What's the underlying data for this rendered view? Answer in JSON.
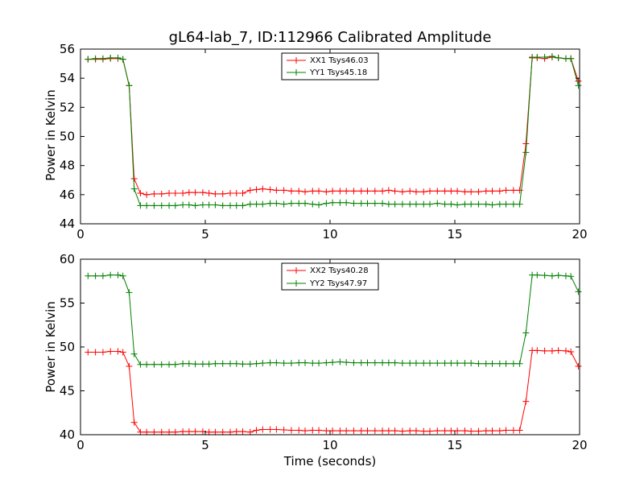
{
  "chart_data": [
    {
      "type": "line",
      "title": "gL64-lab_7, ID:112966 Calibrated Amplitude",
      "xlabel": "",
      "ylabel": "Power in Kelvin",
      "xlim": [
        0,
        20
      ],
      "ylim": [
        44,
        56
      ],
      "xticks": [
        0,
        5,
        10,
        15,
        20
      ],
      "yticks": [
        44,
        46,
        48,
        50,
        52,
        54,
        56
      ],
      "grid": false,
      "legend_position": "top-center",
      "marker": "plus",
      "x": [
        0.3,
        0.6,
        0.9,
        1.2,
        1.5,
        1.7,
        1.95,
        2.15,
        2.4,
        2.65,
        2.95,
        3.25,
        3.55,
        3.8,
        4.1,
        4.35,
        4.6,
        4.9,
        5.15,
        5.4,
        5.7,
        6.0,
        6.25,
        6.5,
        6.8,
        7.05,
        7.3,
        7.6,
        7.85,
        8.15,
        8.45,
        8.75,
        9.0,
        9.3,
        9.55,
        9.85,
        10.1,
        10.4,
        10.65,
        10.95,
        11.25,
        11.5,
        11.8,
        12.1,
        12.35,
        12.6,
        12.9,
        13.2,
        13.45,
        13.75,
        14.0,
        14.3,
        14.6,
        14.85,
        15.1,
        15.4,
        15.65,
        15.95,
        16.25,
        16.5,
        16.8,
        17.05,
        17.35,
        17.6,
        17.85,
        18.1,
        18.3,
        18.6,
        18.9,
        19.15,
        19.45,
        19.65,
        19.95
      ],
      "series": [
        {
          "name": "XX1 Tsys46.03",
          "color": "#ff0000",
          "values": [
            55.3,
            55.3,
            55.3,
            55.35,
            55.35,
            55.3,
            53.5,
            47.1,
            46.1,
            46.0,
            46.05,
            46.05,
            46.1,
            46.1,
            46.1,
            46.15,
            46.15,
            46.15,
            46.1,
            46.05,
            46.05,
            46.1,
            46.1,
            46.1,
            46.3,
            46.35,
            46.4,
            46.35,
            46.3,
            46.3,
            46.25,
            46.25,
            46.2,
            46.25,
            46.25,
            46.2,
            46.25,
            46.25,
            46.25,
            46.25,
            46.25,
            46.25,
            46.25,
            46.25,
            46.3,
            46.25,
            46.2,
            46.25,
            46.2,
            46.2,
            46.25,
            46.25,
            46.25,
            46.25,
            46.25,
            46.2,
            46.2,
            46.2,
            46.25,
            46.25,
            46.25,
            46.3,
            46.3,
            46.3,
            49.5,
            55.4,
            55.4,
            55.35,
            55.45,
            55.4,
            55.35,
            55.35,
            53.8
          ]
        },
        {
          "name": "YY1 Tsys45.18",
          "color": "#008000",
          "values": [
            55.3,
            55.35,
            55.35,
            55.4,
            55.4,
            55.3,
            53.5,
            46.4,
            45.25,
            45.25,
            45.25,
            45.25,
            45.25,
            45.25,
            45.3,
            45.3,
            45.25,
            45.3,
            45.3,
            45.3,
            45.25,
            45.25,
            45.25,
            45.25,
            45.35,
            45.35,
            45.35,
            45.4,
            45.4,
            45.35,
            45.4,
            45.4,
            45.4,
            45.35,
            45.3,
            45.4,
            45.45,
            45.45,
            45.45,
            45.4,
            45.4,
            45.4,
            45.4,
            45.4,
            45.35,
            45.35,
            45.35,
            45.35,
            45.35,
            45.35,
            45.35,
            45.4,
            45.35,
            45.35,
            45.3,
            45.35,
            45.35,
            45.35,
            45.35,
            45.3,
            45.35,
            45.35,
            45.35,
            45.35,
            48.9,
            55.45,
            55.45,
            55.45,
            55.5,
            55.4,
            55.35,
            55.35,
            53.5
          ]
        }
      ]
    },
    {
      "type": "line",
      "title": "",
      "xlabel": "Time (seconds)",
      "ylabel": "Power in Kelvin",
      "xlim": [
        0,
        20
      ],
      "ylim": [
        40,
        60
      ],
      "xticks": [
        0,
        5,
        10,
        15,
        20
      ],
      "yticks": [
        40,
        45,
        50,
        55,
        60
      ],
      "grid": false,
      "legend_position": "top-center",
      "marker": "plus",
      "x": [
        0.3,
        0.6,
        0.9,
        1.2,
        1.5,
        1.7,
        1.95,
        2.15,
        2.4,
        2.65,
        2.95,
        3.25,
        3.55,
        3.8,
        4.1,
        4.35,
        4.6,
        4.9,
        5.15,
        5.4,
        5.7,
        6.0,
        6.25,
        6.5,
        6.8,
        7.05,
        7.3,
        7.6,
        7.85,
        8.15,
        8.45,
        8.75,
        9.0,
        9.3,
        9.55,
        9.85,
        10.1,
        10.4,
        10.65,
        10.95,
        11.25,
        11.5,
        11.8,
        12.1,
        12.35,
        12.6,
        12.9,
        13.2,
        13.45,
        13.75,
        14.0,
        14.3,
        14.6,
        14.85,
        15.1,
        15.4,
        15.65,
        15.95,
        16.25,
        16.5,
        16.8,
        17.05,
        17.35,
        17.6,
        17.85,
        18.1,
        18.3,
        18.6,
        18.9,
        19.15,
        19.45,
        19.65,
        19.95
      ],
      "series": [
        {
          "name": "XX2 Tsys40.28",
          "color": "#ff0000",
          "values": [
            49.4,
            49.4,
            49.4,
            49.5,
            49.5,
            49.4,
            47.8,
            41.4,
            40.3,
            40.3,
            40.3,
            40.3,
            40.3,
            40.3,
            40.35,
            40.35,
            40.35,
            40.35,
            40.3,
            40.3,
            40.3,
            40.3,
            40.35,
            40.35,
            40.3,
            40.5,
            40.6,
            40.6,
            40.6,
            40.55,
            40.5,
            40.5,
            40.45,
            40.5,
            40.5,
            40.45,
            40.45,
            40.45,
            40.45,
            40.45,
            40.45,
            40.45,
            40.45,
            40.45,
            40.45,
            40.45,
            40.4,
            40.45,
            40.45,
            40.4,
            40.4,
            40.45,
            40.45,
            40.45,
            40.45,
            40.45,
            40.4,
            40.4,
            40.45,
            40.45,
            40.45,
            40.5,
            40.5,
            40.5,
            43.8,
            49.6,
            49.6,
            49.55,
            49.55,
            49.6,
            49.55,
            49.45,
            47.8
          ]
        },
        {
          "name": "YY2 Tsys47.97",
          "color": "#008000",
          "values": [
            58.1,
            58.1,
            58.1,
            58.2,
            58.2,
            58.1,
            56.2,
            49.2,
            48.0,
            48.0,
            48.0,
            48.0,
            48.0,
            48.0,
            48.1,
            48.1,
            48.05,
            48.05,
            48.05,
            48.1,
            48.1,
            48.1,
            48.1,
            48.05,
            48.05,
            48.1,
            48.15,
            48.2,
            48.2,
            48.15,
            48.15,
            48.2,
            48.2,
            48.15,
            48.15,
            48.2,
            48.25,
            48.3,
            48.25,
            48.2,
            48.2,
            48.2,
            48.2,
            48.2,
            48.2,
            48.2,
            48.15,
            48.15,
            48.15,
            48.15,
            48.15,
            48.15,
            48.15,
            48.15,
            48.15,
            48.15,
            48.15,
            48.1,
            48.1,
            48.1,
            48.1,
            48.1,
            48.1,
            48.1,
            51.6,
            58.2,
            58.2,
            58.15,
            58.1,
            58.15,
            58.1,
            58.05,
            56.3
          ]
        }
      ]
    }
  ]
}
